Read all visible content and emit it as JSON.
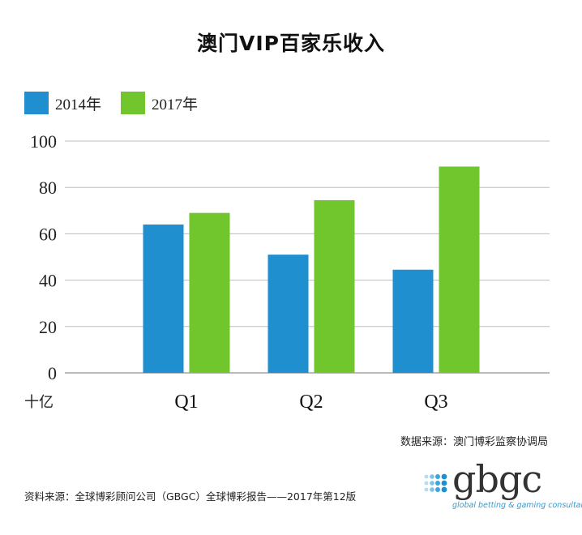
{
  "chart_data": {
    "type": "bar",
    "title": "澳门VIP百家乐收入",
    "categories": [
      "Q1",
      "Q2",
      "Q3"
    ],
    "series": [
      {
        "name": "2014年",
        "color": "#1f8fd0",
        "values": [
          64,
          51,
          44.5
        ]
      },
      {
        "name": "2017年",
        "color": "#71c62e",
        "values": [
          69,
          74.5,
          89
        ]
      }
    ],
    "yticks": [
      0,
      20,
      40,
      60,
      80,
      100
    ],
    "ylim": [
      0,
      100
    ],
    "ylabel": "十亿",
    "xlabel": "",
    "grid": true,
    "legend": "top-left"
  },
  "source": "数据来源：澳门博彩监察协调局",
  "footnote": "资料来源：全球博彩顾问公司（GBGC）全球博彩报告——2017年第12版",
  "logo": {
    "name": "gbgc",
    "tagline": "global betting & gaming consultants",
    "color": "#2a9fd6"
  }
}
